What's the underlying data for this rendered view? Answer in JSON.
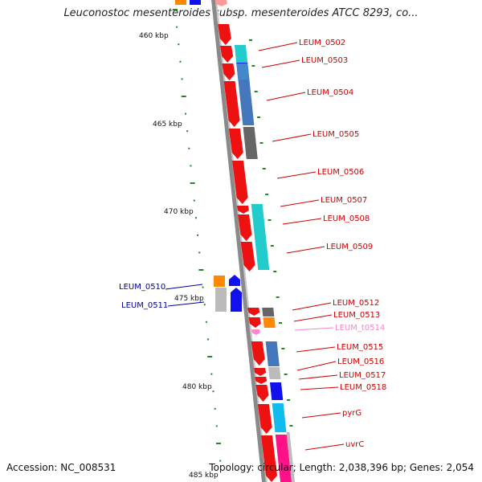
{
  "title": "Leuconostoc mesenteroides subsp. mesenteroides ATCC 8293, co...",
  "accession": "Accession: NC_008531",
  "info": "Topology: circular; Length: 2,038,396 bp; Genes: 2,054",
  "colors": {
    "gene_red": "#ee1111",
    "label_red": "#cc0000",
    "label_blue": "#000099",
    "label_pink": "#ee88cc",
    "backbone": "#888888",
    "ticks": "#228822"
  },
  "ruler": [
    {
      "label": "460 kbp"
    },
    {
      "label": "465 kbp"
    },
    {
      "label": "470 kbp"
    },
    {
      "label": "475 kbp"
    },
    {
      "label": "480 kbp"
    },
    {
      "label": "485 kbp"
    }
  ],
  "genes": [
    {
      "label": "LEUM_0502",
      "strand": "plus"
    },
    {
      "label": "LEUM_0503",
      "strand": "plus"
    },
    {
      "label": "LEUM_0504",
      "strand": "plus"
    },
    {
      "label": "LEUM_0505",
      "strand": "plus"
    },
    {
      "label": "LEUM_0506",
      "strand": "plus"
    },
    {
      "label": "LEUM_0507",
      "strand": "plus"
    },
    {
      "label": "LEUM_0508",
      "strand": "plus"
    },
    {
      "label": "LEUM_0509",
      "strand": "plus"
    },
    {
      "label": "LEUM_0510",
      "strand": "minus"
    },
    {
      "label": "LEUM_0511",
      "strand": "minus"
    },
    {
      "label": "LEUM_0512",
      "strand": "plus"
    },
    {
      "label": "LEUM_0513",
      "strand": "plus"
    },
    {
      "label": "LEUM_t0514",
      "strand": "plus"
    },
    {
      "label": "LEUM_0515",
      "strand": "plus"
    },
    {
      "label": "LEUM_0516",
      "strand": "plus"
    },
    {
      "label": "LEUM_0517",
      "strand": "plus"
    },
    {
      "label": "LEUM_0518",
      "strand": "plus"
    },
    {
      "label": "pyrG",
      "strand": "plus"
    },
    {
      "label": "uvrC",
      "strand": "plus"
    }
  ]
}
